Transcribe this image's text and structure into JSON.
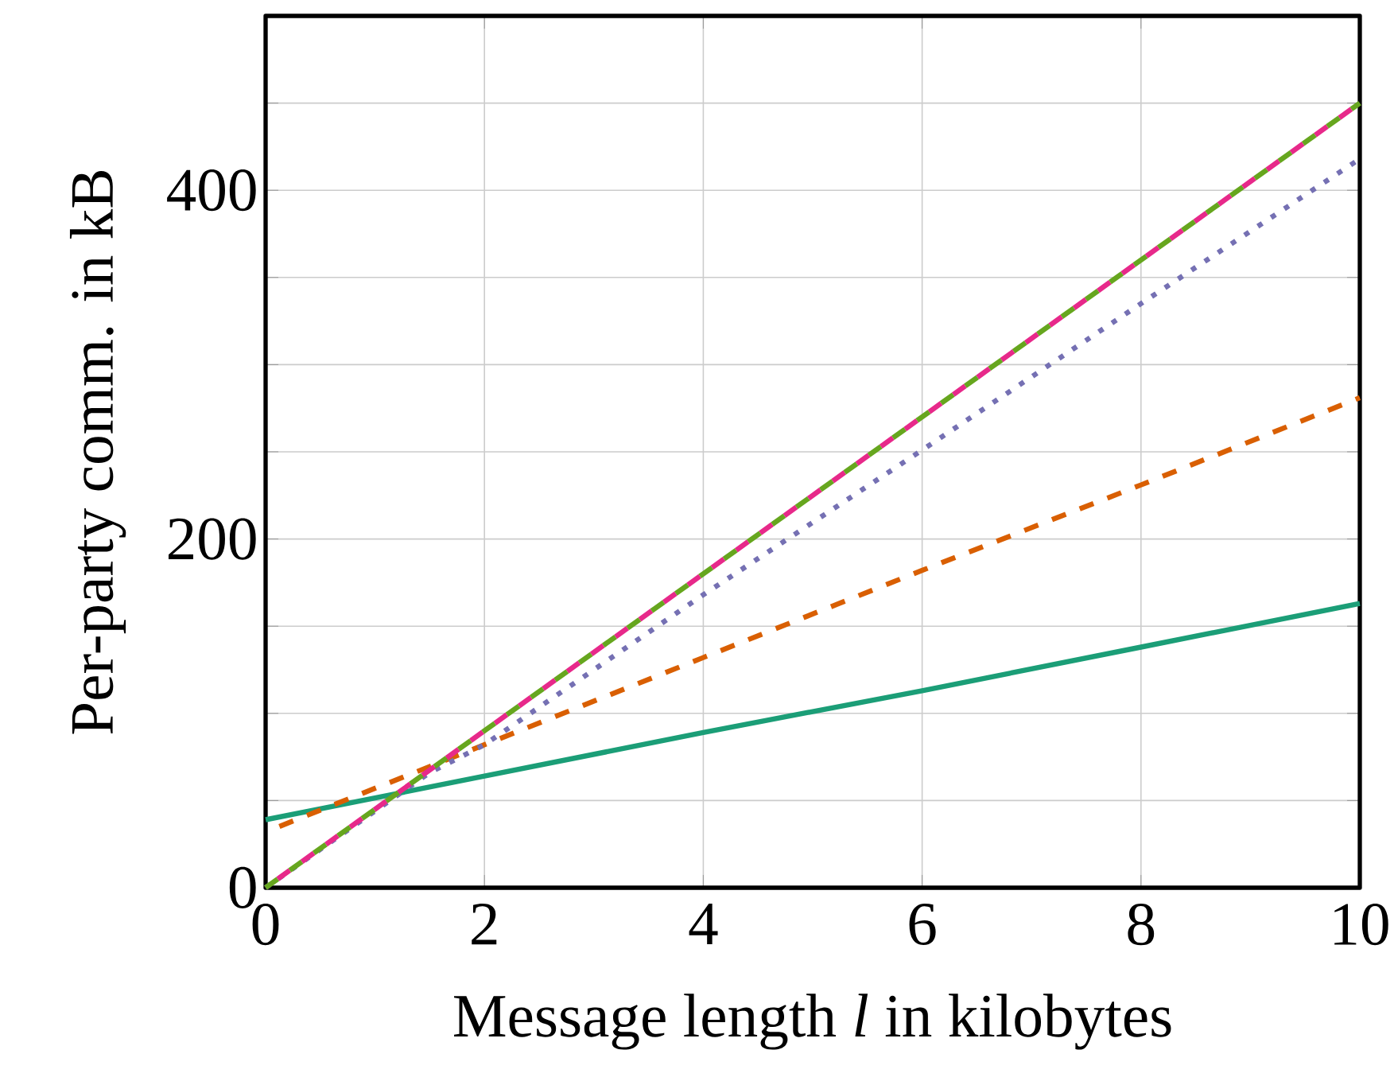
{
  "chart_data": {
    "type": "line",
    "xlabel": "Message length *l* in kilobytes",
    "ylabel": "Per-party comm. in kB",
    "xlim": [
      0,
      10
    ],
    "ylim": [
      0,
      500
    ],
    "xticks": [
      0,
      2,
      4,
      6,
      8,
      10
    ],
    "yticks": [
      0,
      {
        "value": 50,
        "label": null
      },
      {
        "value": 100,
        "label": null
      },
      {
        "value": 150,
        "label": null
      },
      200,
      {
        "value": 250,
        "label": null
      },
      {
        "value": 300,
        "label": null
      },
      {
        "value": 350,
        "label": null
      },
      400,
      {
        "value": 450,
        "label": null
      },
      {
        "value": 500,
        "label": null
      }
    ],
    "grid": true,
    "series": [
      {
        "color": "#1b9e77",
        "line_style": "solid",
        "x": [
          0,
          2,
          4,
          6,
          8,
          10
        ],
        "values": [
          39,
          64,
          89,
          113,
          138,
          163
        ]
      },
      {
        "color": "#d95f02",
        "line_style": "dashed",
        "x": [
          0,
          2,
          4,
          6,
          8,
          10
        ],
        "values": [
          32,
          82,
          132,
          182,
          231,
          281
        ]
      },
      {
        "color": "#7570b3",
        "line_style": "dotted",
        "x": [
          0,
          1.5,
          2,
          4,
          6,
          8,
          10
        ],
        "values": [
          0,
          66,
          82,
          168,
          251,
          335,
          418
        ]
      },
      {
        "color": "#e7298a",
        "line_style": "dashed",
        "x": [
          0,
          2,
          4,
          6,
          8,
          10
        ],
        "values": [
          0,
          90,
          180,
          270,
          360,
          450
        ]
      },
      {
        "color": "#66a61e",
        "line_style": "dashed",
        "x": [
          0,
          2,
          4,
          6,
          8,
          10
        ],
        "values": [
          0,
          90,
          180,
          270,
          360,
          450
        ]
      }
    ]
  }
}
